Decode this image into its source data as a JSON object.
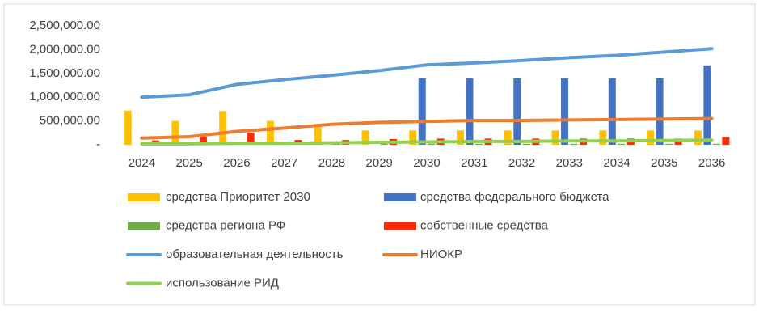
{
  "chart_data": {
    "type": "combo",
    "categories": [
      "2024",
      "2025",
      "2026",
      "2027",
      "2028",
      "2029",
      "2030",
      "2031",
      "2032",
      "2033",
      "2034",
      "2035",
      "2036"
    ],
    "ylim": [
      0,
      2500000
    ],
    "yticks": [
      {
        "value": 0,
        "label": "-"
      },
      {
        "value": 500000,
        "label": "500,000.00"
      },
      {
        "value": 1000000,
        "label": "1,000,000.00"
      },
      {
        "value": 1500000,
        "label": "1,500,000.00"
      },
      {
        "value": 2000000,
        "label": "2,000,000.00"
      },
      {
        "value": 2500000,
        "label": "2,500,000.00"
      }
    ],
    "grid": false,
    "legend": "bottom",
    "series": [
      {
        "name": "средства Приоритет 2030",
        "type": "bar",
        "color": "#ffc000",
        "values": [
          720000,
          500000,
          710000,
          500000,
          380000,
          300000,
          300000,
          300000,
          300000,
          300000,
          300000,
          300000,
          300000
        ]
      },
      {
        "name": "средства федерального бюджета",
        "type": "bar",
        "color": "#4472c4",
        "values": [
          0,
          0,
          0,
          0,
          0,
          0,
          1400000,
          1400000,
          1400000,
          1400000,
          1400000,
          1400000,
          1670000
        ]
      },
      {
        "name": "средства региона РФ",
        "type": "bar",
        "color": "#70ad47",
        "values": [
          20000,
          20000,
          20000,
          20000,
          20000,
          20000,
          20000,
          20000,
          20000,
          20000,
          20000,
          20000,
          20000
        ]
      },
      {
        "name": "собственные средства",
        "type": "bar",
        "color": "#ff2a00",
        "values": [
          90000,
          170000,
          250000,
          100000,
          100000,
          120000,
          130000,
          130000,
          130000,
          130000,
          130000,
          130000,
          160000
        ]
      },
      {
        "name": "образовательная деятельность",
        "type": "line",
        "color": "#5b9bd5",
        "values": [
          1000000,
          1050000,
          1270000,
          1370000,
          1460000,
          1560000,
          1680000,
          1720000,
          1770000,
          1830000,
          1880000,
          1950000,
          2020000
        ]
      },
      {
        "name": "НИОКР",
        "type": "line",
        "color": "#ed7d31",
        "values": [
          140000,
          170000,
          280000,
          350000,
          430000,
          470000,
          490000,
          510000,
          510000,
          520000,
          530000,
          540000,
          550000
        ]
      },
      {
        "name": "использование РИД",
        "type": "line",
        "color": "#92d050",
        "values": [
          20000,
          20000,
          30000,
          30000,
          40000,
          50000,
          60000,
          70000,
          70000,
          80000,
          80000,
          90000,
          100000
        ]
      }
    ]
  }
}
